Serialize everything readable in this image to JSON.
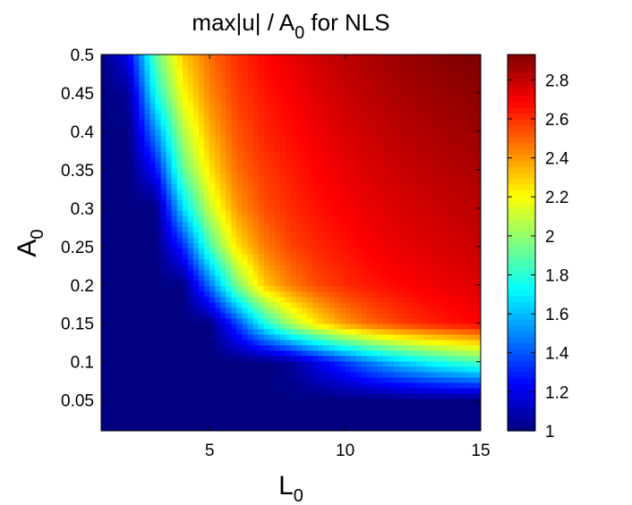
{
  "chart_data": {
    "type": "heatmap",
    "title": {
      "main": "max|u| / A",
      "sub": "0",
      "rest": " for NLS"
    },
    "xlabel": {
      "main": "L",
      "sub": "0"
    },
    "ylabel": {
      "main": "A",
      "sub": "0"
    },
    "xlim": [
      1,
      15
    ],
    "ylim": [
      0.01,
      0.5
    ],
    "xticks": [
      5,
      10,
      15
    ],
    "xtick_labels": [
      "5",
      "10",
      "15"
    ],
    "yticks": [
      0.05,
      0.1,
      0.15,
      0.2,
      0.25,
      0.3,
      0.35,
      0.4,
      0.45,
      0.5
    ],
    "ytick_labels": [
      "0.05",
      "0.1",
      "0.15",
      "0.2",
      "0.25",
      "0.3",
      "0.35",
      "0.4",
      "0.45",
      "0.5"
    ],
    "colorbar": {
      "min": 1,
      "max": 2.93,
      "ticks": [
        1,
        1.2,
        1.4,
        1.6,
        1.8,
        2,
        2.2,
        2.4,
        2.6,
        2.8
      ],
      "tick_labels": [
        "1",
        "1.2",
        "1.4",
        "1.6",
        "1.8",
        "2",
        "2.2",
        "2.4",
        "2.6",
        "2.8"
      ],
      "colormap": "jet"
    },
    "x": [
      1,
      2,
      3,
      4,
      5,
      6,
      7,
      8,
      9,
      10,
      11,
      12,
      13,
      14,
      15
    ],
    "y": [
      0.05,
      0.1,
      0.15,
      0.2,
      0.25,
      0.3,
      0.35,
      0.4,
      0.45,
      0.5
    ],
    "z": [
      [
        1.0,
        1.0,
        1.0,
        1.0,
        1.0,
        1.0,
        1.0,
        1.0,
        1.0,
        1.0,
        1.0,
        1.0,
        1.0,
        1.0,
        1.0
      ],
      [
        1.0,
        1.0,
        1.0,
        1.0,
        1.0,
        1.0,
        1.0,
        1.05,
        1.2,
        1.35,
        1.5,
        1.62,
        1.72,
        1.8,
        1.87
      ],
      [
        1.0,
        1.0,
        1.0,
        1.0,
        1.0,
        1.35,
        1.75,
        2.05,
        2.25,
        2.4,
        2.5,
        2.57,
        2.62,
        2.66,
        2.69
      ],
      [
        1.0,
        1.0,
        1.0,
        1.0,
        1.45,
        1.95,
        2.3,
        2.45,
        2.55,
        2.61,
        2.65,
        2.68,
        2.71,
        2.73,
        2.75
      ],
      [
        1.0,
        1.0,
        1.0,
        1.3,
        1.85,
        2.25,
        2.45,
        2.56,
        2.62,
        2.66,
        2.7,
        2.73,
        2.75,
        2.77,
        2.79
      ],
      [
        1.0,
        1.0,
        1.0,
        1.65,
        2.1,
        2.4,
        2.54,
        2.61,
        2.66,
        2.7,
        2.73,
        2.76,
        2.78,
        2.8,
        2.82
      ],
      [
        1.0,
        1.0,
        1.25,
        1.9,
        2.25,
        2.48,
        2.58,
        2.64,
        2.69,
        2.73,
        2.76,
        2.79,
        2.81,
        2.83,
        2.85
      ],
      [
        1.0,
        1.0,
        1.5,
        2.05,
        2.35,
        2.53,
        2.62,
        2.67,
        2.72,
        2.76,
        2.79,
        2.82,
        2.84,
        2.86,
        2.88
      ],
      [
        1.0,
        1.05,
        1.75,
        2.2,
        2.43,
        2.57,
        2.65,
        2.7,
        2.75,
        2.79,
        2.82,
        2.85,
        2.87,
        2.89,
        2.91
      ],
      [
        1.0,
        1.2,
        1.9,
        2.3,
        2.48,
        2.6,
        2.68,
        2.73,
        2.78,
        2.82,
        2.85,
        2.88,
        2.9,
        2.92,
        2.93
      ]
    ]
  }
}
